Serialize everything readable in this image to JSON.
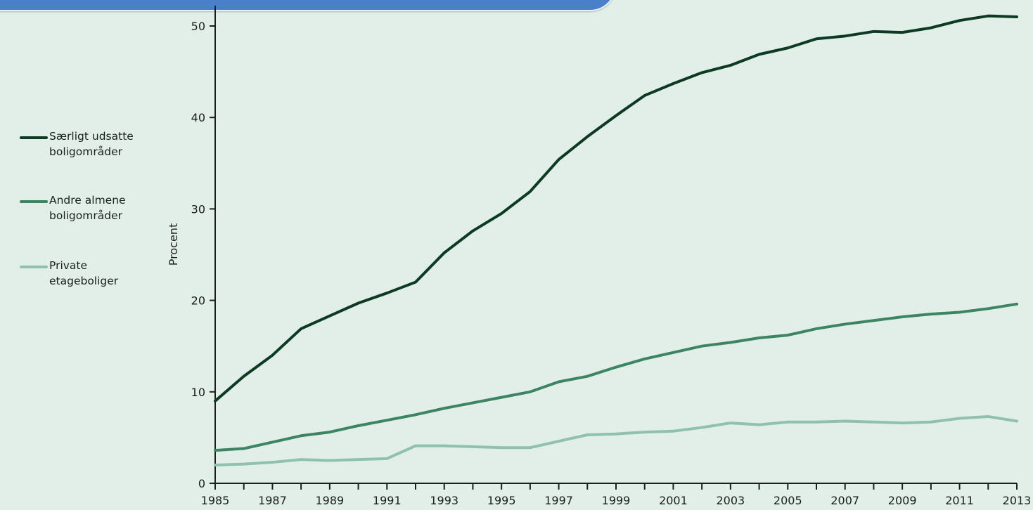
{
  "chart_data": {
    "type": "line",
    "title": "",
    "xlabel": "",
    "ylabel": "Procent",
    "ylim": [
      0,
      50
    ],
    "yticks": [
      0,
      10,
      20,
      30,
      40,
      50
    ],
    "xlim": [
      1985,
      2013
    ],
    "xticks": [
      "1985",
      "1987",
      "1989",
      "1991",
      "1993",
      "1995",
      "1997",
      "1999",
      "2001",
      "2003",
      "2005",
      "2007",
      "2009",
      "2011",
      "2013"
    ],
    "grid": false,
    "legend_position": "left",
    "x": [
      1985,
      1986,
      1987,
      1988,
      1989,
      1990,
      1991,
      1992,
      1993,
      1994,
      1995,
      1996,
      1997,
      1998,
      1999,
      2000,
      2001,
      2002,
      2003,
      2004,
      2005,
      2006,
      2007,
      2008,
      2009,
      2010,
      2011,
      2012,
      2013
    ],
    "series": [
      {
        "name": "Særligt udsatte boligområder",
        "color": "#0c3a22",
        "values": [
          9.0,
          11.7,
          14.0,
          16.9,
          18.3,
          19.7,
          20.8,
          22.0,
          25.2,
          27.6,
          29.5,
          31.9,
          35.4,
          37.9,
          40.2,
          42.4,
          43.7,
          44.9,
          45.7,
          46.9,
          47.6,
          48.6,
          48.9,
          49.4,
          49.3,
          49.8,
          50.6,
          51.1,
          51.0
        ]
      },
      {
        "name": "Andre almene boligområder",
        "color": "#3c8462",
        "values": [
          3.6,
          3.8,
          4.5,
          5.2,
          5.6,
          6.3,
          6.9,
          7.5,
          8.2,
          8.8,
          9.4,
          10.0,
          11.1,
          11.7,
          12.7,
          13.6,
          14.3,
          15.0,
          15.4,
          15.9,
          16.2,
          16.9,
          17.4,
          17.8,
          18.2,
          18.5,
          18.7,
          19.1,
          19.6
        ]
      },
      {
        "name": "Private etageboliger",
        "color": "#8fc1ad",
        "values": [
          2.0,
          2.1,
          2.3,
          2.6,
          2.5,
          2.6,
          2.7,
          4.1,
          4.1,
          4.0,
          3.9,
          3.9,
          4.6,
          5.3,
          5.4,
          5.6,
          5.7,
          6.1,
          6.6,
          6.4,
          6.7,
          6.7,
          6.8,
          6.7,
          6.6,
          6.7,
          7.1,
          7.3,
          6.8
        ]
      }
    ]
  },
  "legend": {
    "items": [
      {
        "label": "Særligt udsatte\nboligområder",
        "color": "#0c3a22"
      },
      {
        "label": "Andre almene\nboligområder",
        "color": "#3c8462"
      },
      {
        "label": "Private\netageboliger",
        "color": "#8fc1ad"
      }
    ]
  },
  "banner": {
    "color": "#4a7fc9"
  }
}
